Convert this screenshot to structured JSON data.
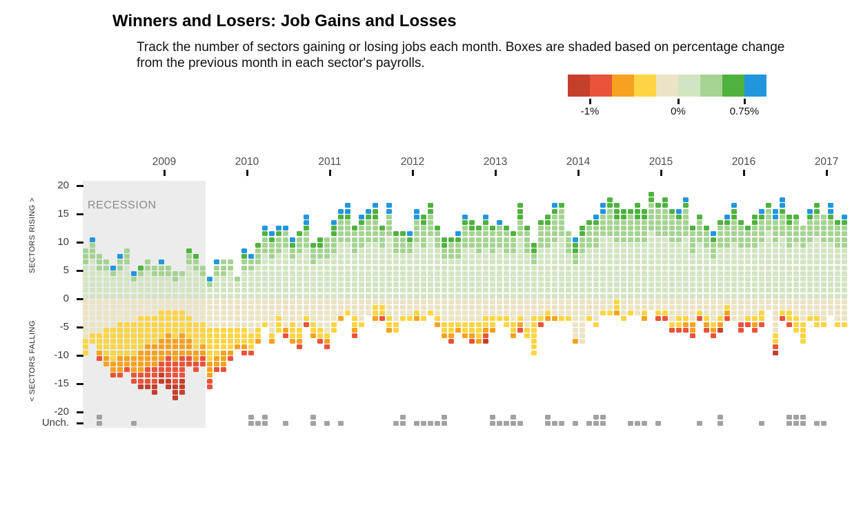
{
  "header": {
    "title": "Winners and Losers: Job Gains and Losses",
    "subtitle_line1": "Track the number of sectors gaining or losing jobs each month. Boxes are shaded based on percentage change",
    "subtitle_line2": "from the previous month in each sector's payrolls."
  },
  "legend": {
    "colors": [
      "#c4402d",
      "#e8533a",
      "#f6a11f",
      "#fdd443",
      "#ebe3c3",
      "#d2e5c2",
      "#a5d392",
      "#4fb23f",
      "#2196dd"
    ],
    "ticks": [
      {
        "label": "-1%",
        "boundary_index": 1
      },
      {
        "label": "0%",
        "boundary_index": 5
      },
      {
        "label": "0.75%",
        "boundary_index": 8
      }
    ]
  },
  "axes": {
    "y_ticks": [
      "20",
      "15",
      "10",
      "5",
      "0",
      "-5",
      "-10",
      "-15",
      "-20",
      "Unch."
    ],
    "years": [
      "2009",
      "2010",
      "2011",
      "2012",
      "2013",
      "2014",
      "2015",
      "2016",
      "2017"
    ],
    "left_label_top": "SECTORS RISING >",
    "left_label_bottom": "< SECTORS FALLING"
  },
  "recession": {
    "label": "RECESSION"
  },
  "chart_data": {
    "type": "bar",
    "subtype": "stacked-box-columns, one box per sector per month; rising sectors stack up from zero, falling sectors stack down, unchanged sectors shown as gray boxes in the Unch. row",
    "ylim": [
      -20,
      20
    ],
    "x_range": [
      "Jan 2008",
      "Mar 2017"
    ],
    "grid": false,
    "legend_position": "top-right",
    "color_scale": {
      "min_label": "-1%",
      "mid_label": "0%",
      "max_label": "0.75%"
    },
    "palette": {
      "K": "#c4402d",
      "R": "#e8533a",
      "O": "#f6a11f",
      "Y": "#fdd443",
      "E": "#ebe3c3",
      "P": "#d2e5c2",
      "M": "#a5d392",
      "G": "#4fb23f",
      "B": "#2196dd",
      "U": "#a1a1a1"
    },
    "recession_months": [
      "Jan 2008",
      "Jun 2009"
    ],
    "months": [
      {
        "m": "Jan 2008",
        "r": "PPPPPPMMM",
        "f": "EEEEEEEYYY",
        "u": 0
      },
      {
        "m": "Feb 2008",
        "r": "PPPPPPPMMMB",
        "f": "EEEEEEYY",
        "u": 0
      },
      {
        "m": "Mar 2008",
        "r": "PPPPPMMM",
        "f": "EEEEEEYYYOR",
        "u": 2
      },
      {
        "m": "Apr 2008",
        "r": "PPPPPMM",
        "f": "EEEEEYYYYYOO",
        "u": 0
      },
      {
        "m": "May 2008",
        "r": "PPPPMB",
        "f": "EEEEEYYYYYYOOR",
        "u": 0
      },
      {
        "m": "Jun 2008",
        "r": "PPPPPMMB",
        "f": "EEEEYYYYYYOOOR",
        "u": 0
      },
      {
        "m": "Jul 2008",
        "r": "PPPPPPMMM",
        "f": "EEEEYYYYYYOOR",
        "u": 0
      },
      {
        "m": "Aug 2008",
        "r": "PPPMB",
        "f": "EEEEYYYYYYOOORR",
        "u": 1
      },
      {
        "m": "Sep 2008",
        "r": "PPPPMG",
        "f": "EEEYYYYYYOOOORRK",
        "u": 0
      },
      {
        "m": "Oct 2008",
        "r": "PPPPPMM",
        "f": "EEEYYYYYOOOORRRK",
        "u": 0
      },
      {
        "m": "Nov 2008",
        "r": "PPPPMM",
        "f": "EEEYYYYYOOOORRRKK",
        "u": 0
      },
      {
        "m": "Dec 2008",
        "r": "PPPPMMB",
        "f": "EEYYYYYOOOORRKK",
        "u": 0
      },
      {
        "m": "Jan 2009",
        "r": "PPPPMM",
        "f": "EEYYYYOOOORRRRKK",
        "u": 0
      },
      {
        "m": "Feb 2009",
        "r": "PPPMM",
        "f": "EEYYYYYOOOORRRRKKK",
        "u": 0
      },
      {
        "m": "Mar 2009",
        "r": "PPPPM",
        "f": "EEYYYYOOOORRRRKKK",
        "u": 0
      },
      {
        "m": "Apr 2009",
        "r": "PPPPPPMMG",
        "f": "EEEYYYYOOORR",
        "u": 0
      },
      {
        "m": "May 2009",
        "r": "PPPPPMMG",
        "f": "EEEEYYYYYOORR",
        "u": 0
      },
      {
        "m": "Jun 2009",
        "r": "PPPPMM",
        "f": "EEEEYYYYOORR",
        "u": 0
      },
      {
        "m": "Jul 2009",
        "r": "PPMB",
        "f": "EEEEEYYYYYYOOORR",
        "u": 0
      },
      {
        "m": "Aug 2009",
        "r": "PPPPMMB",
        "f": "EEEEEYYYYYOOR",
        "u": 0
      },
      {
        "m": "Sep 2009",
        "r": "PPPPMMM",
        "f": "EEEEEYYYYOOOR",
        "u": 0
      },
      {
        "m": "Oct 2009",
        "r": "PPPPPMM",
        "f": "EEEEEYYYYOR",
        "u": 0
      },
      {
        "m": "Nov 2009",
        "r": "PPPM",
        "f": "EEEEEYYYO",
        "u": 0
      },
      {
        "m": "Dec 2009",
        "r": "PPPPPMMGB",
        "f": "EEEEEYYYOR",
        "u": 0
      },
      {
        "m": "Jan 2010",
        "r": "PPPPPMMB",
        "f": "EEEEEEYYYR",
        "u": 2
      },
      {
        "m": "Feb 2010",
        "r": "PPPPPPMMMG",
        "f": "EEEEEYYO",
        "u": 1
      },
      {
        "m": "Mar 2010",
        "r": "PPPPPPPPMMMGB",
        "f": "EEEEY",
        "u": 2
      },
      {
        "m": "Apr 2010",
        "r": "PPPPPPPMMMGB",
        "f": "EEEEEEYO",
        "u": 0
      },
      {
        "m": "May 2010",
        "r": "PPPPPPPPMMMGB",
        "f": "EEEYYY",
        "u": 0
      },
      {
        "m": "Jun 2010",
        "r": "PPPPPPPPPMMMB",
        "f": "EEEEEOR",
        "u": 1
      },
      {
        "m": "Jul 2010",
        "r": "PPPPPPPMMGB",
        "f": "EEEEYYYO",
        "u": 0
      },
      {
        "m": "Aug 2010",
        "r": "PPPPPPPPMMMG",
        "f": "EEEEEYYOR",
        "u": 0
      },
      {
        "m": "Sep 2010",
        "r": "PPPPPPPPPMMMGBB",
        "f": "EEEYR",
        "u": 0
      },
      {
        "m": "Oct 2010",
        "r": "PPPPPPMMMG",
        "f": "EEEEYYO",
        "u": 2
      },
      {
        "m": "Nov 2010",
        "r": "PPPPPPPMMGG",
        "f": "EEEEEYYR",
        "u": 0
      },
      {
        "m": "Dec 2010",
        "r": "PPPPPPPMMMM",
        "f": "EEEEEEYOR",
        "u": 1
      },
      {
        "m": "Jan 2011",
        "r": "PPPPPPPPMMMGGB",
        "f": "EEEEYY",
        "u": 0
      },
      {
        "m": "Feb 2011",
        "r": "PPPPPPPPPPMMMMGB",
        "f": "EEEO",
        "u": 1
      },
      {
        "m": "Mar 2011",
        "r": "PPPPPPPPPPMMMMGBB",
        "f": "EEY",
        "u": 0
      },
      {
        "m": "Apr 2011",
        "r": "PPPPPPPPMMMMG",
        "f": "EEEYYOR",
        "u": 0
      },
      {
        "m": "May 2011",
        "r": "PPPPPPPPPMMMMGB",
        "f": "EEEEY",
        "u": 0
      },
      {
        "m": "Jun 2011",
        "r": "PPPPPPPPPPMMMMGB",
        "f": "EEE",
        "u": 0
      },
      {
        "m": "Jul 2011",
        "r": "PPPPPPPPPPMMMMGGB",
        "f": "EYYO",
        "u": 0
      },
      {
        "m": "Aug 2011",
        "r": "PPPPPPPPPMMMG",
        "f": "EYYR",
        "u": 0
      },
      {
        "m": "Sep 2011",
        "r": "PPPPPPPPPPPMMMMBB",
        "f": "EEEYYO",
        "u": 0
      },
      {
        "m": "Oct 2011",
        "r": "PPPPPPPPMMMG",
        "f": "EEEEYY",
        "u": 1
      },
      {
        "m": "Nov 2011",
        "r": "PPPPPPPPMMMG",
        "f": "EEEY",
        "u": 2
      },
      {
        "m": "Dec 2011",
        "r": "PPPPPPPPMMGB",
        "f": "EEEY",
        "u": 0
      },
      {
        "m": "Jan 2012",
        "r": "PPPPPPPPPPMMMMBB",
        "f": "EEYO",
        "u": 1
      },
      {
        "m": "Feb 2012",
        "r": "PPPPPPPPPMMMMGG",
        "f": "EEEY",
        "u": 1
      },
      {
        "m": "Mar 2012",
        "r": "PPPPPPPPPPPMMMMGG",
        "f": "EEY",
        "u": 1
      },
      {
        "m": "Apr 2012",
        "r": "PPPPPPPPPMMMG",
        "f": "EEEYO",
        "u": 1
      },
      {
        "m": "May 2012",
        "r": "PPPPPPPMMGG",
        "f": "EEEEYYO",
        "u": 2
      },
      {
        "m": "Jun 2012",
        "r": "PPPPPPPMMMG",
        "f": "EEEEYYOR",
        "u": 0
      },
      {
        "m": "Jul 2012",
        "r": "PPPPPPPMMMGB",
        "f": "EEEEYO",
        "u": 0
      },
      {
        "m": "Aug 2012",
        "r": "PPPPPPPPPMMMMGB",
        "f": "EEEEYYO",
        "u": 0
      },
      {
        "m": "Sep 2012",
        "r": "PPPPPPPPPMMMGG",
        "f": "EEEEYYOR",
        "u": 0
      },
      {
        "m": "Oct 2012",
        "r": "PPPPPPPPMMMMG",
        "f": "EEEEYYYO",
        "u": 0
      },
      {
        "m": "Nov 2012",
        "r": "PPPPPPPPPMMMMGB",
        "f": "EEEYYORK",
        "u": 0
      },
      {
        "m": "Dec 2012",
        "r": "PPPPPPPPMMMMG",
        "f": "EEEYYO",
        "u": 2
      },
      {
        "m": "Jan 2013",
        "r": "PPPPPPPPPMMMMB",
        "f": "EEEY",
        "u": 1
      },
      {
        "m": "Feb 2013",
        "r": "PPPPPPPPMMMMG",
        "f": "EEEYY",
        "u": 1
      },
      {
        "m": "Mar 2013",
        "r": "PPPPPPPPMMMG",
        "f": "EEEEYYO",
        "u": 2
      },
      {
        "m": "Apr 2013",
        "r": "PPPPPPPPPPPMMMGGG",
        "f": "EEEYOR",
        "u": 1
      },
      {
        "m": "May 2013",
        "r": "PPPPPPPPMMMMG",
        "f": "EEEEEYY",
        "u": 0
      },
      {
        "m": "Jun 2013",
        "r": "PPPPPPMMGG",
        "f": "EEEYYYYYYY",
        "u": 0
      },
      {
        "m": "Jul 2013",
        "r": "PPPPPPPPPMMMMG",
        "f": "EEEYR",
        "u": 0
      },
      {
        "m": "Aug 2013",
        "r": "PPPPPPPPPMMMMGG",
        "f": "EEYO",
        "u": 2
      },
      {
        "m": "Sep 2013",
        "r": "PPPPPPPPPPMMMMMGB",
        "f": "EEEO",
        "u": 1
      },
      {
        "m": "Oct 2013",
        "r": "PPPPPPPPPPPMMMMMG",
        "f": "EEEY",
        "u": 1
      },
      {
        "m": "Nov 2013",
        "r": "PPPPPPPPMMMM",
        "f": "EEEY",
        "u": 0
      },
      {
        "m": "Dec 2013",
        "r": "PPPPPPMMGGB",
        "f": "EEEEEEEO",
        "u": 1
      },
      {
        "m": "Jan 2014",
        "r": "PPPPPPPPMMMGG",
        "f": "EEEEEEEE",
        "u": 0
      },
      {
        "m": "Feb 2014",
        "r": "PPPPPPPPPMMMMG",
        "f": "EEEY",
        "u": 1
      },
      {
        "m": "Mar 2014",
        "r": "PPPPPPPPPMMMMGB",
        "f": "EEEEY",
        "u": 2
      },
      {
        "m": "Apr 2014",
        "r": "PPPPPPPPPPPMMMMBB",
        "f": "EEY",
        "u": 2
      },
      {
        "m": "May 2014",
        "r": "PPPPPPPPPPPMMMMMGG",
        "f": "EEY",
        "u": 0
      },
      {
        "m": "Jun 2014",
        "r": "PPPPPPPPPPMMMMGGG",
        "f": "YYO",
        "u": 0
      },
      {
        "m": "Jul 2014",
        "r": "PPPPPPPPPPMMMMGG",
        "f": "EEEY",
        "u": 0
      },
      {
        "m": "Aug 2014",
        "r": "PPPPPPPPPPMMMMMG",
        "f": "EEY",
        "u": 1
      },
      {
        "m": "Sep 2014",
        "r": "PPPPPPPPPPMMMMGGG",
        "f": "EEE",
        "u": 1
      },
      {
        "m": "Oct 2014",
        "r": "PPPPPPPPPPMMMMGG",
        "f": "EEYO",
        "u": 1
      },
      {
        "m": "Nov 2014",
        "r": "PPPPPPPPPPPPMMMMMGG",
        "f": "EE",
        "u": 0
      },
      {
        "m": "Dec 2014",
        "r": "PPPPPPPPPPPMMMMMG",
        "f": "EEYR",
        "u": 1
      },
      {
        "m": "Jan 2015",
        "r": "PPPPPPPPPPPMMMMMGG",
        "f": "EEYR",
        "u": 0
      },
      {
        "m": "Feb 2015",
        "r": "PPPPPPPPPPMMMMMG",
        "f": "EEEEYR",
        "u": 0
      },
      {
        "m": "Mar 2015",
        "r": "PPPPPPPPPPMMMMGB",
        "f": "EEEYYR",
        "u": 0
      },
      {
        "m": "Apr 2015",
        "r": "PPPPPPPPPPPMMMMMGB",
        "f": "EEEYOR",
        "u": 0
      },
      {
        "m": "May 2015",
        "r": "PPPPPPPPMMMMG",
        "f": "EEEEOOR",
        "u": 0
      },
      {
        "m": "Jun 2015",
        "r": "PPPPPPPPPPMMMMG",
        "f": "EEYR",
        "u": 1
      },
      {
        "m": "Jul 2015",
        "r": "PPPPPPPPPMMMG",
        "f": "EEEYOR",
        "u": 0
      },
      {
        "m": "Aug 2015",
        "r": "PPPPPPPMMMGB",
        "f": "EEEEYOR",
        "u": 0
      },
      {
        "m": "Sep 2015",
        "r": "PPPPPPPPPMMMMG",
        "f": "EEEYOK",
        "u": 2
      },
      {
        "m": "Oct 2015",
        "r": "PPPPPPPPPMMMMGB",
        "f": "EYOR",
        "u": 0
      },
      {
        "m": "Nov 2015",
        "r": "PPPPPPPPPPMMMMGGB",
        "f": "EEEE",
        "u": 0
      },
      {
        "m": "Dec 2015",
        "r": "PPPPPPPPPMMMMG",
        "f": "EEEERR",
        "u": 0
      },
      {
        "m": "Jan 2016",
        "r": "PPPPPPPPPMMMG",
        "f": "EEEYR",
        "u": 0
      },
      {
        "m": "Feb 2016",
        "r": "PPPPPPPPPMMMMGG",
        "f": "EEEYOR",
        "u": 0
      },
      {
        "m": "Mar 2016",
        "r": "PPPPPPPPPPMMMMGB",
        "f": "EEYYR",
        "u": 1
      },
      {
        "m": "Apr 2016",
        "r": "PPPPPPPPPPPPMMMMG",
        "f": "EE",
        "u": 0
      },
      {
        "m": "May 2016",
        "r": "PPPPPPPPPPMMMMBB",
        "f": "EEEEEEYYRK",
        "u": 0
      },
      {
        "m": "Jun 2016",
        "r": "PPPPPPPPPPPMMMMGBB",
        "f": "EEYR",
        "u": 0
      },
      {
        "m": "Jul 2016",
        "r": "PPPPPPPPPMMMMGG",
        "f": "EEYYR",
        "u": 2
      },
      {
        "m": "Aug 2016",
        "r": "PPPPPPPPPPMMMMG",
        "f": "EEEYYY",
        "u": 2
      },
      {
        "m": "Sep 2016",
        "r": "PPPPPPPPPMMMM",
        "f": "EEEEYYYY",
        "u": 2
      },
      {
        "m": "Oct 2016",
        "r": "PPPPPPPPPPMMMMGB",
        "f": "EEEY",
        "u": 0
      },
      {
        "m": "Nov 2016",
        "r": "PPPPPPPPPPPMMMMGG",
        "f": "EEEYY",
        "u": 1
      },
      {
        "m": "Dec 2016",
        "r": "PPPPPPPPPPMMMMM",
        "f": "EEEEY",
        "u": 1
      },
      {
        "m": "Jan 2017",
        "r": "PPPPPPPPPPMMMMGBB",
        "f": "EEE",
        "u": 0
      },
      {
        "m": "Feb 2017",
        "r": "PPPPPPPPPMMMMG",
        "f": "EEEEY",
        "u": 0
      },
      {
        "m": "Mar 2017",
        "r": "PPPPPPPPPMMMMGB",
        "f": "EEEEY",
        "u": 0
      }
    ]
  }
}
